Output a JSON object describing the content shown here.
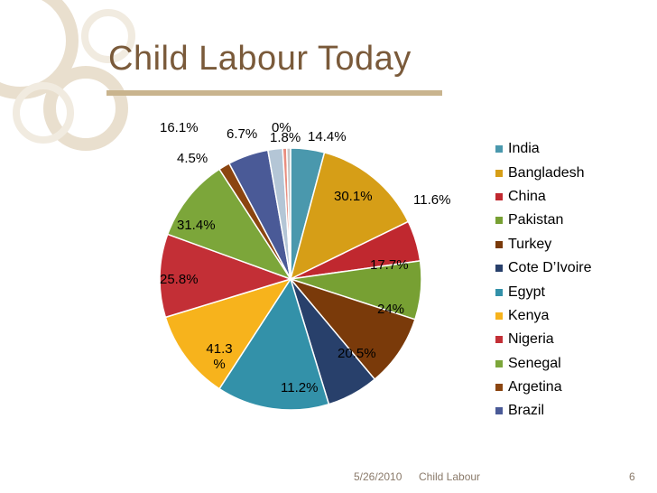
{
  "slide": {
    "title": "Child Labour Today",
    "date": "5/26/2010",
    "footer_text": "Child Labour",
    "page_number": "6"
  },
  "chart_data": {
    "type": "pie",
    "categories": [
      "India",
      "Bangladesh",
      "China",
      "Pakistan",
      "Turkey",
      "Cote D’Ivoire",
      "Egypt",
      "Kenya",
      "Nigeria",
      "Senegal",
      "Argetina",
      "Brazil"
    ],
    "slices": [
      {
        "category": "India",
        "color": "#4a98ad",
        "start_deg": 0,
        "end_deg": 15
      },
      {
        "category": "Bangladesh",
        "color": "#d69e17",
        "start_deg": 15,
        "end_deg": 64
      },
      {
        "category": "China",
        "color": "#c0282f",
        "start_deg": 64,
        "end_deg": 82
      },
      {
        "category": "Pakistan",
        "color": "#77a033",
        "start_deg": 82,
        "end_deg": 108
      },
      {
        "category": "Turkey",
        "color": "#7a3a0a",
        "start_deg": 108,
        "end_deg": 140
      },
      {
        "category": "Cote D’Ivoire",
        "color": "#28406b",
        "start_deg": 140,
        "end_deg": 163
      },
      {
        "category": "Egypt",
        "color": "#3391a9",
        "start_deg": 163,
        "end_deg": 213
      },
      {
        "category": "Kenya",
        "color": "#f7b31c",
        "start_deg": 213,
        "end_deg": 253
      },
      {
        "category": "Nigeria",
        "color": "#c32f36",
        "start_deg": 253,
        "end_deg": 290
      },
      {
        "category": "Senegal",
        "color": "#7ca63a",
        "start_deg": 290,
        "end_deg": 327
      },
      {
        "category": "Argetina",
        "color": "#8b4510",
        "start_deg": 327,
        "end_deg": 332
      },
      {
        "category": "Brazil",
        "color": "#4a5a97",
        "start_deg": 332,
        "end_deg": 350
      },
      {
        "category": "",
        "color": "#b4c6d6",
        "start_deg": 350,
        "end_deg": 356.5
      },
      {
        "category": "",
        "color": "#e88e80",
        "start_deg": 356.5,
        "end_deg": 358.3
      },
      {
        "category": "",
        "color": "#c6c6c6",
        "start_deg": 358.3,
        "end_deg": 360
      }
    ],
    "data_labels": [
      "14.4%",
      "30.1%",
      "11.6%",
      "17.7%",
      "24%",
      "20.5%",
      "11.2%",
      "41.3 %",
      "25.8%",
      "31.4%",
      "4.5%",
      "16.1%",
      "6.7%",
      "1.8%",
      "0%"
    ],
    "legend_position": "right"
  }
}
